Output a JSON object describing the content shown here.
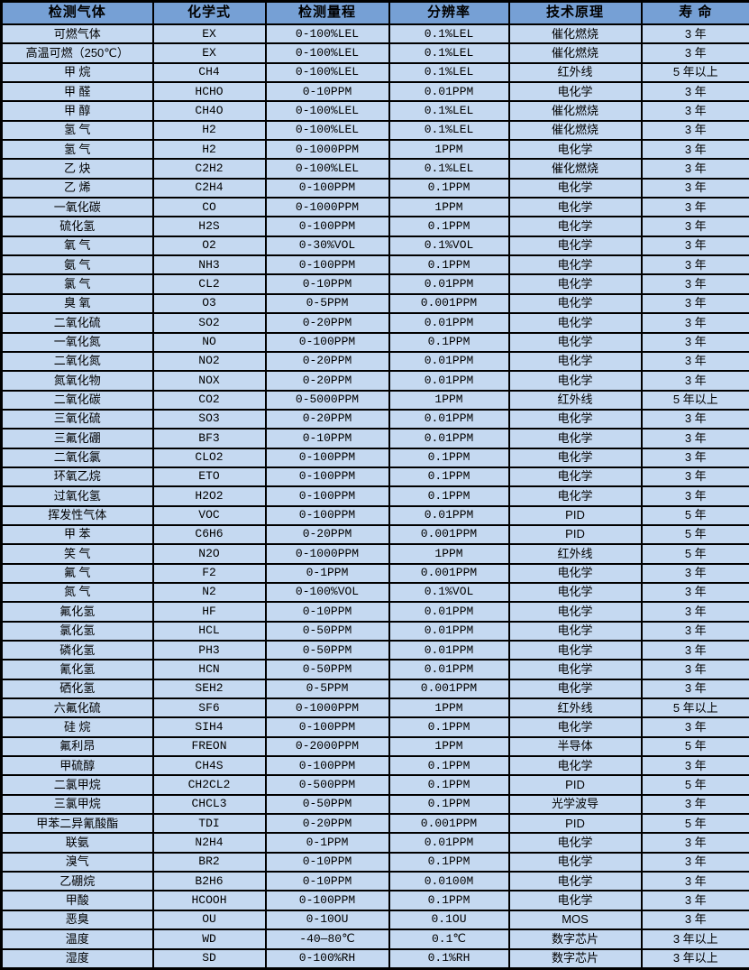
{
  "colors": {
    "header_bg": "#76a0d5",
    "row_bg": "#c5d9f1",
    "border": "#000000",
    "text": "#000000"
  },
  "table": {
    "headers": [
      "检测气体",
      "化学式",
      "检测量程",
      "分辨率",
      "技术原理",
      "寿 命"
    ],
    "rows": [
      [
        "可燃气体",
        "EX",
        "0-100%LEL",
        "0.1%LEL",
        "催化燃烧",
        "3 年"
      ],
      [
        "高温可燃（250℃）",
        "EX",
        "0-100%LEL",
        "0.1%LEL",
        "催化燃烧",
        "3 年"
      ],
      [
        "甲 烷",
        "CH4",
        "0-100%LEL",
        "0.1%LEL",
        "红外线",
        "5 年以上"
      ],
      [
        "甲 醛",
        "HCHO",
        "0-10PPM",
        "0.01PPM",
        "电化学",
        "3 年"
      ],
      [
        "甲 醇",
        "CH4O",
        "0-100%LEL",
        "0.1%LEL",
        "催化燃烧",
        "3 年"
      ],
      [
        "氢 气",
        "H2",
        "0-100%LEL",
        "0.1%LEL",
        "催化燃烧",
        "3 年"
      ],
      [
        "氢 气",
        "H2",
        "0-1000PPM",
        "1PPM",
        "电化学",
        "3 年"
      ],
      [
        "乙 炔",
        "C2H2",
        "0-100%LEL",
        "0.1%LEL",
        "催化燃烧",
        "3 年"
      ],
      [
        "乙 烯",
        "C2H4",
        "0-100PPM",
        "0.1PPM",
        "电化学",
        "3 年"
      ],
      [
        "一氧化碳",
        "CO",
        "0-1000PPM",
        "1PPM",
        "电化学",
        "3 年"
      ],
      [
        "硫化氢",
        "H2S",
        "0-100PPM",
        "0.1PPM",
        "电化学",
        "3 年"
      ],
      [
        "氧 气",
        "O2",
        "0-30%VOL",
        "0.1%VOL",
        "电化学",
        "3 年"
      ],
      [
        "氨 气",
        "NH3",
        "0-100PPM",
        "0.1PPM",
        "电化学",
        "3 年"
      ],
      [
        "氯 气",
        "CL2",
        "0-10PPM",
        "0.01PPM",
        "电化学",
        "3 年"
      ],
      [
        "臭 氧",
        "O3",
        "0-5PPM",
        "0.001PPM",
        "电化学",
        "3 年"
      ],
      [
        "二氧化硫",
        "SO2",
        "0-20PPM",
        "0.01PPM",
        "电化学",
        "3 年"
      ],
      [
        "一氧化氮",
        "NO",
        "0-100PPM",
        "0.1PPM",
        "电化学",
        "3 年"
      ],
      [
        "二氧化氮",
        "NO2",
        "0-20PPM",
        "0.01PPM",
        "电化学",
        "3 年"
      ],
      [
        "氮氧化物",
        "NOX",
        "0-20PPM",
        "0.01PPM",
        "电化学",
        "3 年"
      ],
      [
        "二氧化碳",
        "CO2",
        "0-5000PPM",
        "1PPM",
        "红外线",
        "5 年以上"
      ],
      [
        "三氧化硫",
        "SO3",
        "0-20PPM",
        "0.01PPM",
        "电化学",
        "3 年"
      ],
      [
        "三氟化硼",
        "BF3",
        "0-10PPM",
        "0.01PPM",
        "电化学",
        "3 年"
      ],
      [
        "二氧化氯",
        "CLO2",
        "0-100PPM",
        "0.1PPM",
        "电化学",
        "3 年"
      ],
      [
        "环氧乙烷",
        "ETO",
        "0-100PPM",
        "0.1PPM",
        "电化学",
        "3 年"
      ],
      [
        "过氧化氢",
        "H2O2",
        "0-100PPM",
        "0.1PPM",
        "电化学",
        "3 年"
      ],
      [
        "挥发性气体",
        "VOC",
        "0-100PPM",
        "0.01PPM",
        "PID",
        "5 年"
      ],
      [
        "甲 苯",
        "C6H6",
        "0-20PPM",
        "0.001PPM",
        "PID",
        "5 年"
      ],
      [
        "笑 气",
        "N2O",
        "0-1000PPM",
        "1PPM",
        "红外线",
        "5 年"
      ],
      [
        "氟 气",
        "F2",
        "0-1PPM",
        "0.001PPM",
        "电化学",
        "3 年"
      ],
      [
        "氮 气",
        "N2",
        "0-100%VOL",
        "0.1%VOL",
        "电化学",
        "3 年"
      ],
      [
        "氟化氢",
        "HF",
        "0-10PPM",
        "0.01PPM",
        "电化学",
        "3 年"
      ],
      [
        "氯化氢",
        "HCL",
        "0-50PPM",
        "0.01PPM",
        "电化学",
        "3 年"
      ],
      [
        "磷化氢",
        "PH3",
        "0-50PPM",
        "0.01PPM",
        "电化学",
        "3 年"
      ],
      [
        "氰化氢",
        "HCN",
        "0-50PPM",
        "0.01PPM",
        "电化学",
        "3 年"
      ],
      [
        "硒化氢",
        "SEH2",
        "0-5PPM",
        "0.001PPM",
        "电化学",
        "3 年"
      ],
      [
        "六氟化硫",
        "SF6",
        "0-1000PPM",
        "1PPM",
        "红外线",
        "5 年以上"
      ],
      [
        "硅 烷",
        "SIH4",
        "0-100PPM",
        "0.1PPM",
        "电化学",
        "3 年"
      ],
      [
        "氟利昂",
        "FREON",
        "0-2000PPM",
        "1PPM",
        "半导体",
        "5 年"
      ],
      [
        "甲硫醇",
        "CH4S",
        "0-100PPM",
        "0.1PPM",
        "电化学",
        "3 年"
      ],
      [
        "二氯甲烷",
        "CH2CL2",
        "0-500PPM",
        "0.1PPM",
        "PID",
        "5 年"
      ],
      [
        "三氯甲烷",
        "CHCL3",
        "0-50PPM",
        "0.1PPM",
        "光学波导",
        "3 年"
      ],
      [
        "甲苯二异氰酸酯",
        "TDI",
        "0-20PPM",
        "0.001PPM",
        "PID",
        "5 年"
      ],
      [
        "联氨",
        "N2H4",
        "0-1PPM",
        "0.01PPM",
        "电化学",
        "3 年"
      ],
      [
        "溴气",
        "BR2",
        "0-10PPM",
        "0.1PPM",
        "电化学",
        "3 年"
      ],
      [
        "乙硼烷",
        "B2H6",
        "0-10PPM",
        "0.0100M",
        "电化学",
        "3 年"
      ],
      [
        "甲酸",
        "HCOOH",
        "0-100PPM",
        "0.1PPM",
        "电化学",
        "3 年"
      ],
      [
        "恶臭",
        "OU",
        "0-10OU",
        "0.1OU",
        "MOS",
        "3 年"
      ],
      [
        "温度",
        "WD",
        "-40—80℃",
        "0.1℃",
        "数字芯片",
        "3 年以上"
      ],
      [
        "湿度",
        "SD",
        "0-100%RH",
        "0.1%RH",
        "数字芯片",
        "3 年以上"
      ]
    ]
  }
}
